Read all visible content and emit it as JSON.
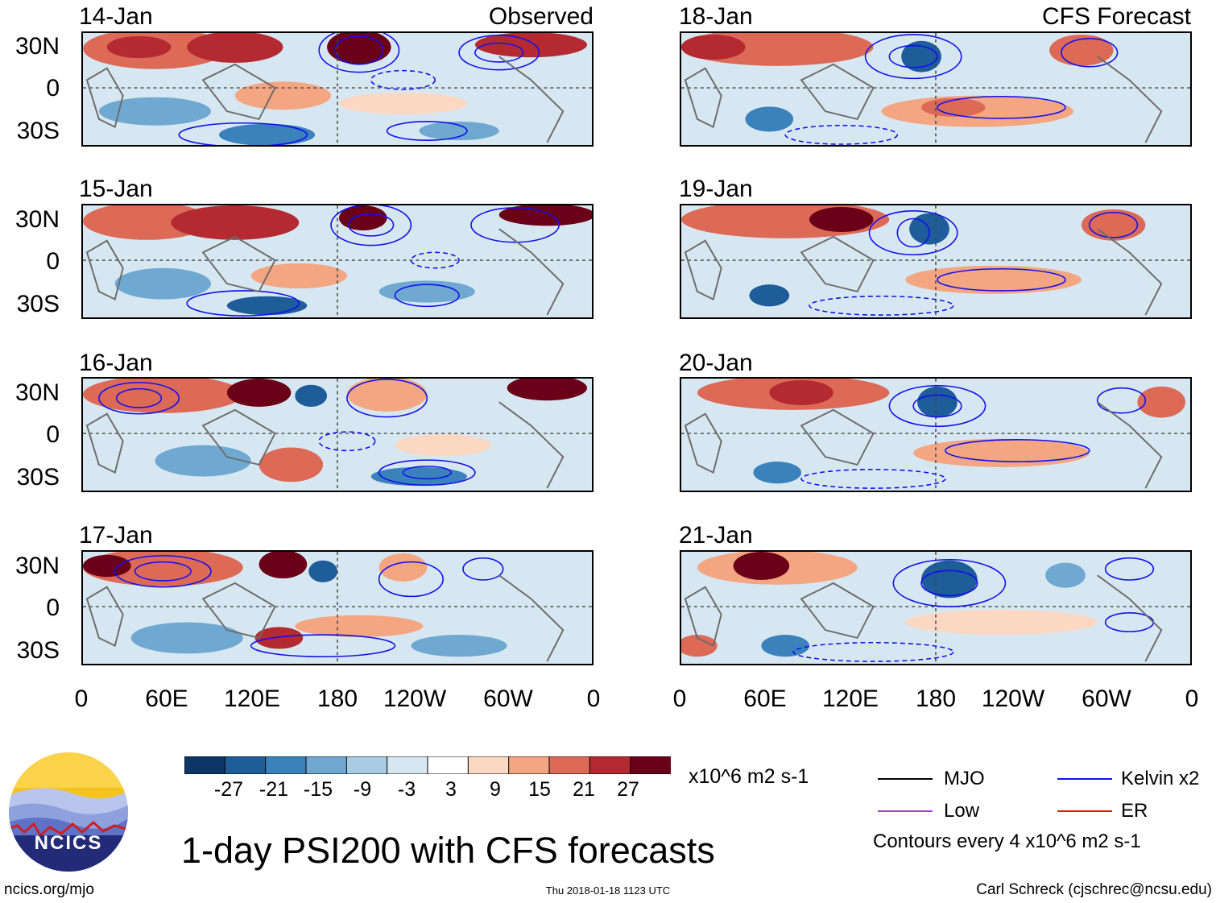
{
  "title": "1-day PSI200 with CFS forecasts",
  "labels": {
    "observed": "Observed",
    "forecast": "CFS Forecast"
  },
  "panels": {
    "left": [
      "14-Jan",
      "15-Jan",
      "16-Jan",
      "17-Jan"
    ],
    "right": [
      "18-Jan",
      "19-Jan",
      "20-Jan",
      "21-Jan"
    ]
  },
  "lat_ticks": [
    "30N",
    "0",
    "30S"
  ],
  "lon_ticks": [
    "0",
    "60E",
    "120E",
    "180",
    "120W",
    "60W",
    "0"
  ],
  "colorbar": {
    "ticks": [
      "-27",
      "-21",
      "-15",
      "-9",
      "-3",
      "3",
      "9",
      "15",
      "21",
      "27"
    ],
    "colors": [
      "#0d3566",
      "#1f5c9a",
      "#3b82bc",
      "#6fa9d2",
      "#a9cce4",
      "#d7e7f2",
      "#ffffff",
      "#fcd8c3",
      "#f4a682",
      "#dd6a56",
      "#b52a31",
      "#6b0019"
    ],
    "units": "x10^6 m2 s-1"
  },
  "legend": {
    "mjo": "MJO",
    "kelvin": "Kelvin x2",
    "low": "Low",
    "er": "ER",
    "contours": "Contours every 4 x10^6 m2 s-1",
    "colors": {
      "mjo": "#000000",
      "kelvin": "#1010ee",
      "low": "#a040e0",
      "er": "#ee1010"
    }
  },
  "logo": {
    "text": "NCICS"
  },
  "footer": {
    "url": "ncics.org/mjo",
    "timestamp": "Thu 2018-01-18 1123 UTC",
    "credit": "Carl Schreck (cjschrec@ncsu.edu)"
  }
}
